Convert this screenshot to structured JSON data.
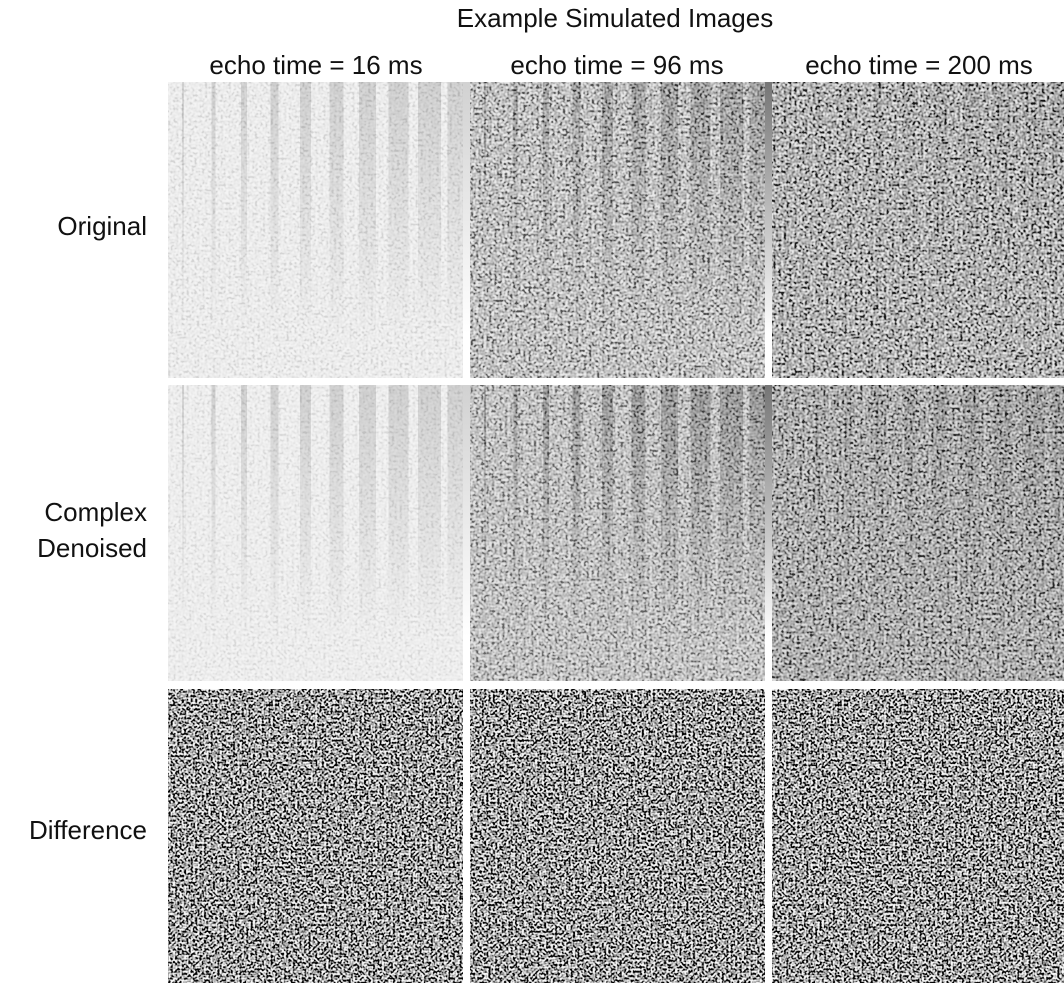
{
  "title": "Example Simulated Images",
  "columns": [
    "echo time = 16 ms",
    "echo time = 96 ms",
    "echo time = 200 ms"
  ],
  "rows": [
    [
      "Original"
    ],
    [
      "Complex",
      "Denoised"
    ],
    [
      "Difference"
    ]
  ]
}
